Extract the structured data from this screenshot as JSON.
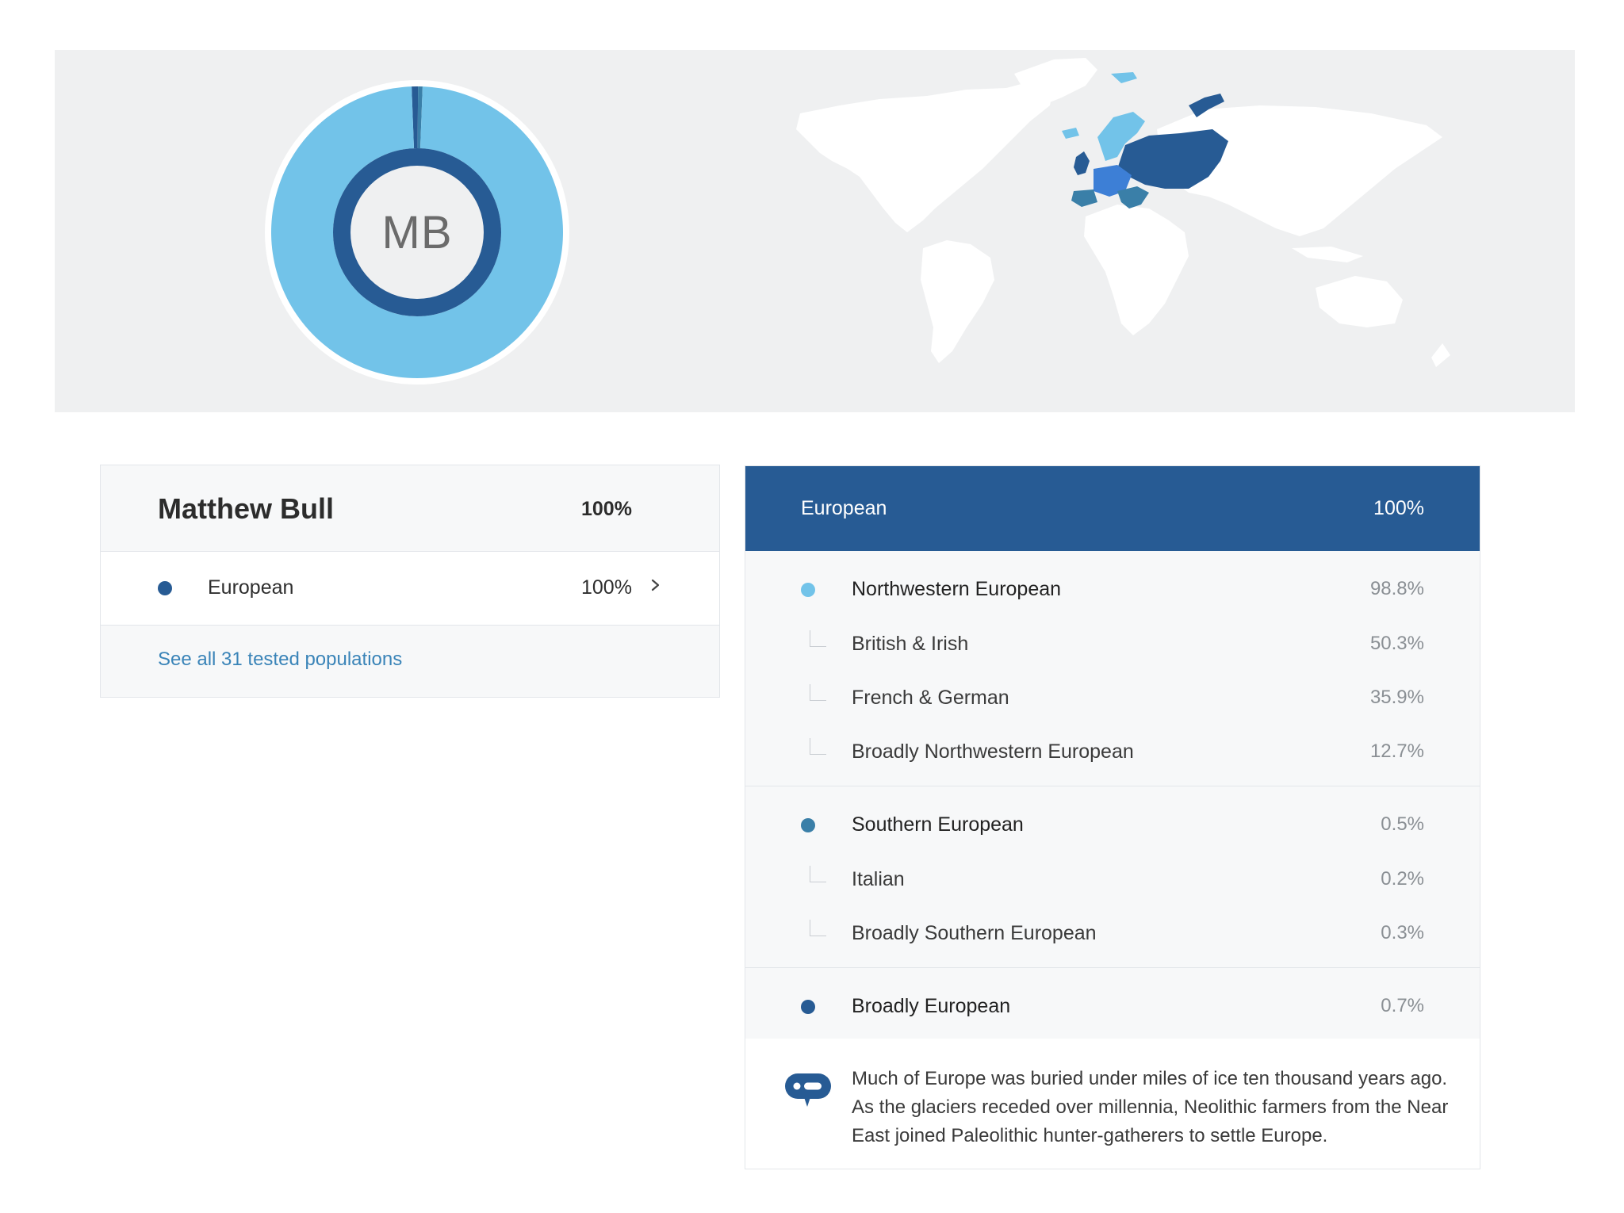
{
  "profile": {
    "initials": "MB",
    "name": "Matthew Bull",
    "total": "100%",
    "rows": [
      {
        "label": "European",
        "percent": "100%"
      }
    ],
    "see_all_link": "See all 31 tested populations"
  },
  "donut": {
    "segments": [
      {
        "name": "Northwestern European",
        "value": 98.8,
        "color": "#72c3e9"
      },
      {
        "name": "Southern European",
        "value": 0.5,
        "color": "#3a7fa8"
      },
      {
        "name": "Broadly European",
        "value": 0.7,
        "color": "#275b94"
      }
    ],
    "ring_color": "#275b94"
  },
  "breakdown": {
    "header": {
      "title": "European",
      "percent": "100%"
    },
    "groups": [
      {
        "name": "Northwestern European",
        "percent": "98.8%",
        "color": "#72c3e9",
        "children": [
          {
            "name": "British & Irish",
            "percent": "50.3%"
          },
          {
            "name": "French & German",
            "percent": "35.9%"
          },
          {
            "name": "Broadly Northwestern European",
            "percent": "12.7%"
          }
        ]
      },
      {
        "name": "Southern European",
        "percent": "0.5%",
        "color": "#3a7fa8",
        "children": [
          {
            "name": "Italian",
            "percent": "0.2%"
          },
          {
            "name": "Broadly Southern European",
            "percent": "0.3%"
          }
        ]
      },
      {
        "name": "Broadly European",
        "percent": "0.7%",
        "color": "#275b94",
        "children": []
      }
    ],
    "note": "Much of Europe was buried under miles of ice ten thousand years ago. As the glaciers receded over millennia, Neolithic farmers from the Near East joined Paleolithic hunter-gatherers to settle Europe.",
    "note_icon": "chat-bubble-icon"
  },
  "colors": {
    "brand": "#275b94",
    "light": "#72c3e9",
    "link": "#3a84b8"
  }
}
